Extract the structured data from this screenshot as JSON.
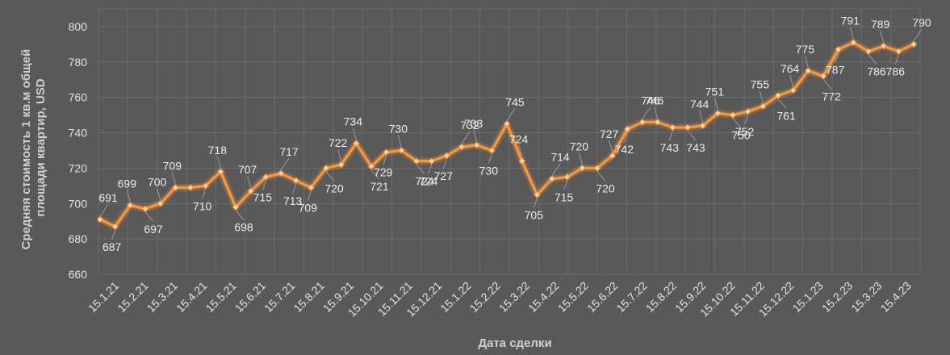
{
  "chart_data": {
    "type": "line",
    "title": "",
    "xlabel": "Дата сделки",
    "ylabel_lines": [
      "Средняя стоимость 1 кв.м общей",
      "площади квартир, USD"
    ],
    "ylim": [
      660,
      810
    ],
    "yticks": [
      660,
      680,
      700,
      720,
      740,
      760,
      780,
      800
    ],
    "grid": true,
    "legend": "none",
    "colors": {
      "background": "#595959",
      "line": "#f7953a",
      "marker": "#fcd7a5",
      "grid": "#6c6c6c",
      "text": "#e3e3e3"
    },
    "xtick_labels": [
      "15.1.21",
      "15.2.21",
      "15.3.21",
      "15.4.21",
      "15.5.21",
      "15.6.21",
      "15.7.21",
      "15.8.21",
      "15.9.21",
      "15.10.21",
      "15.11.21",
      "15.12.21",
      "15.1.22",
      "15.2.22",
      "15.3.22",
      "15.4.22",
      "15.5.22",
      "15.6.22",
      "15.7.22",
      "15.8.22",
      "15.9.22",
      "15.10.22",
      "15.11.22",
      "15.12.22",
      "15.1.23",
      "15.2.23",
      "15.3.23",
      "15.4.23"
    ],
    "series": [
      {
        "values": [
          691,
          687,
          699,
          697,
          700,
          709,
          709,
          710,
          718,
          698,
          707,
          715,
          717,
          713,
          709,
          720,
          722,
          734,
          721,
          729,
          730,
          724,
          724,
          727,
          732,
          733,
          730,
          745,
          724,
          705,
          714,
          715,
          720,
          720,
          727,
          742,
          746,
          746,
          743,
          743,
          744,
          751,
          750,
          752,
          755,
          761,
          764,
          775,
          772,
          787,
          791,
          786,
          789,
          786,
          790
        ],
        "data_labels": [
          "691",
          "687",
          "699",
          "697",
          "700",
          "709",
          "",
          "710",
          "718",
          "698",
          "707",
          "715",
          "717",
          "713",
          "709",
          "720",
          "722",
          "734",
          "721",
          "729",
          "730",
          "724",
          "724",
          "727",
          "732",
          "733",
          "730",
          "745",
          "724",
          "705",
          "714",
          "715",
          "720",
          "720",
          "727",
          "742",
          "746",
          "746",
          "743",
          "743",
          "744",
          "751",
          "750",
          "752",
          "755",
          "761",
          "764",
          "775",
          "772",
          "787",
          "791",
          "786",
          "789",
          "786",
          "790"
        ]
      }
    ]
  }
}
